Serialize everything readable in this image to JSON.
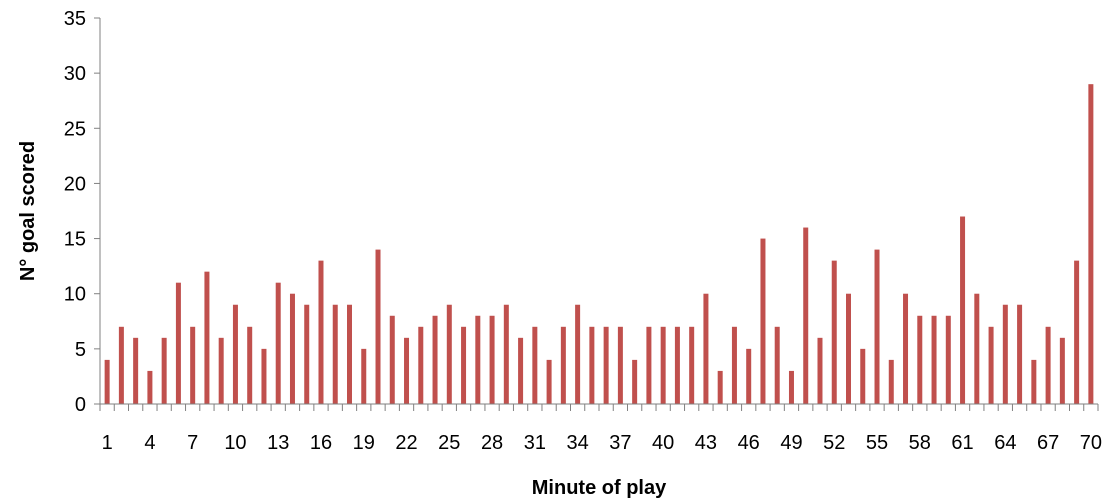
{
  "chart_data": {
    "type": "bar",
    "xlabel": "Minute of play",
    "ylabel": "N° goal scored",
    "ylim": [
      0,
      35
    ],
    "yticks": [
      0,
      5,
      10,
      15,
      20,
      25,
      30,
      35
    ],
    "grid": false,
    "bar_color": "#c0504d",
    "categories": [
      1,
      2,
      3,
      4,
      5,
      6,
      7,
      8,
      9,
      10,
      11,
      12,
      13,
      14,
      15,
      16,
      17,
      18,
      19,
      20,
      21,
      22,
      23,
      24,
      25,
      26,
      27,
      28,
      29,
      30,
      31,
      32,
      33,
      34,
      35,
      36,
      37,
      38,
      39,
      40,
      41,
      42,
      43,
      44,
      45,
      46,
      47,
      48,
      49,
      50,
      51,
      52,
      53,
      54,
      55,
      56,
      57,
      58,
      59,
      60,
      61,
      62,
      63,
      64,
      65,
      66,
      67,
      68,
      69,
      70
    ],
    "xtick_labels": [
      1,
      4,
      7,
      10,
      13,
      16,
      19,
      22,
      25,
      28,
      31,
      34,
      37,
      40,
      43,
      46,
      49,
      52,
      55,
      58,
      61,
      64,
      67,
      70
    ],
    "values": [
      4,
      7,
      6,
      3,
      6,
      11,
      7,
      12,
      6,
      9,
      7,
      5,
      11,
      10,
      9,
      13,
      9,
      9,
      5,
      14,
      8,
      6,
      7,
      8,
      9,
      7,
      8,
      8,
      9,
      6,
      7,
      4,
      7,
      9,
      7,
      7,
      7,
      4,
      7,
      7,
      7,
      7,
      10,
      3,
      7,
      5,
      15,
      7,
      3,
      16,
      6,
      13,
      10,
      5,
      14,
      4,
      10,
      8,
      8,
      8,
      17,
      10,
      7,
      9,
      9,
      4,
      7,
      6,
      13,
      29
    ]
  }
}
